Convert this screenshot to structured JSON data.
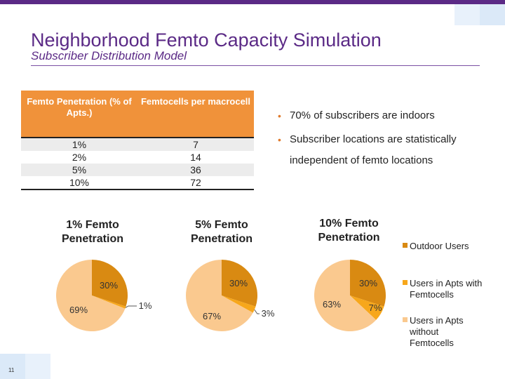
{
  "slide": {
    "title": "Neighborhood Femto Capacity Simulation",
    "subtitle": "Subscriber Distribution Model",
    "page_number": "11",
    "accent_color": "#5b2a86"
  },
  "table": {
    "headers": [
      "Femto Penetration (% of Apts.)",
      "Femtocells per macrocell"
    ],
    "rows": [
      [
        "1%",
        "7"
      ],
      [
        "2%",
        "14"
      ],
      [
        "5%",
        "36"
      ],
      [
        "10%",
        "72"
      ]
    ],
    "header_color": "#f0923a"
  },
  "bullets": [
    "70% of subscribers are indoors",
    "Subscriber locations are statistically independent of femto locations"
  ],
  "chart_data": [
    {
      "type": "pie",
      "title": "1% Femto Penetration",
      "categories": [
        "Outdoor Users",
        "Users in Apts with Femtocells",
        "Users in Apts without Femtocells"
      ],
      "values": [
        30,
        1,
        69
      ],
      "labels": [
        "30%",
        "1%",
        "69%"
      ],
      "colors": [
        "#d98a12",
        "#f7a71b",
        "#fac98f"
      ],
      "legend": "right"
    },
    {
      "type": "pie",
      "title": "5% Femto Penetration",
      "categories": [
        "Outdoor Users",
        "Users in Apts with Femtocells",
        "Users in Apts without Femtocells"
      ],
      "values": [
        30,
        3,
        67
      ],
      "labels": [
        "30%",
        "3%",
        "67%"
      ],
      "colors": [
        "#d98a12",
        "#f7a71b",
        "#fac98f"
      ],
      "legend": "right"
    },
    {
      "type": "pie",
      "title": "10% Femto Penetration",
      "categories": [
        "Outdoor Users",
        "Users in Apts with Femtocells",
        "Users in Apts without Femtocells"
      ],
      "values": [
        30,
        7,
        63
      ],
      "labels": [
        "30%",
        "7%",
        "63%"
      ],
      "colors": [
        "#d98a12",
        "#f7a71b",
        "#fac98f"
      ],
      "legend": "right"
    }
  ],
  "legend": {
    "items": [
      "Outdoor Users",
      "Users in Apts with Femtocells",
      "Users in Apts without Femtocells"
    ],
    "colors": [
      "#d98a12",
      "#f7a71b",
      "#fac98f"
    ]
  }
}
